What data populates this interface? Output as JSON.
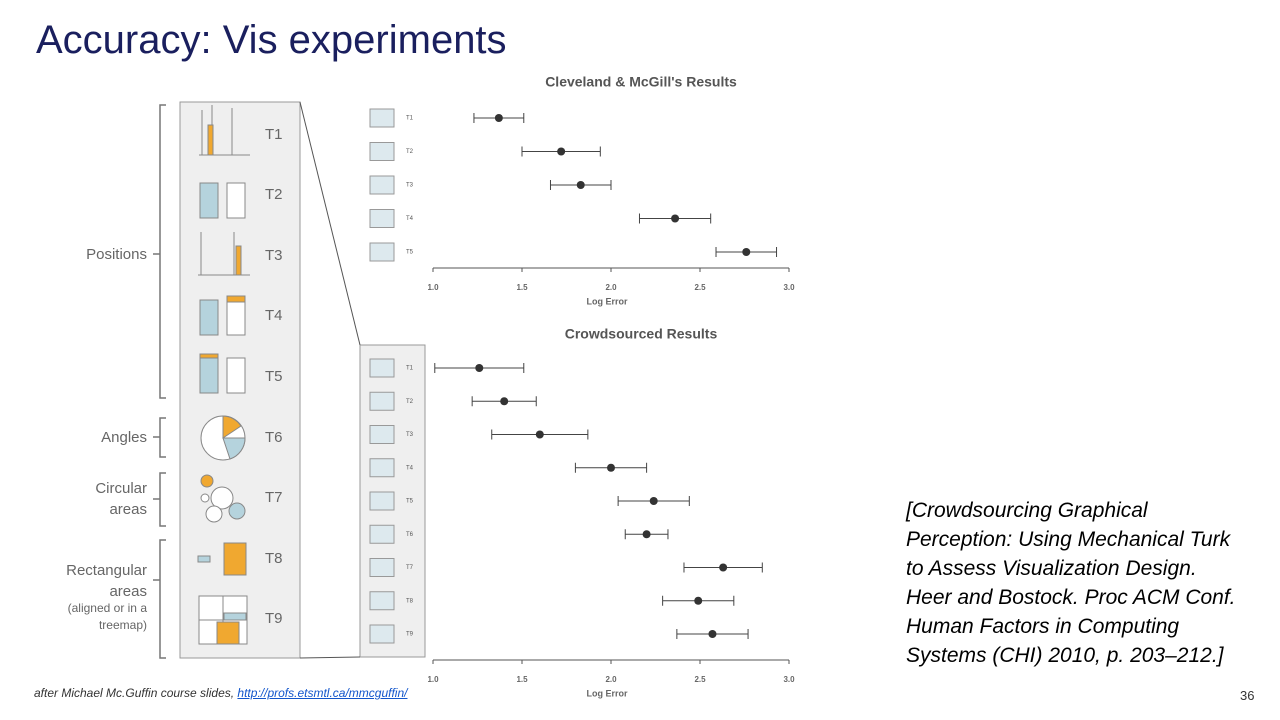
{
  "title": "Accuracy: Vis experiments",
  "footer": {
    "text": "after Michael Mc.Guffin course slides, ",
    "link": "http://profs.etsmtl.ca/mmcguffin/"
  },
  "citation": "[Crowdsourcing Graphical Perception: Using Mechanical Turk to Assess Visualization Design. Heer and Bostock. Proc ACM Conf. Human Factors in Computing Systems (CHI) 2010, p. 203–212.]",
  "page_number": "36",
  "panel": {
    "groups": [
      {
        "label": "Positions"
      },
      {
        "label": "Angles"
      },
      {
        "label": "Circular areas"
      },
      {
        "label": "Rectangular areas",
        "note": "(aligned or in a treemap)"
      }
    ],
    "tasks": [
      "T1",
      "T2",
      "T3",
      "T4",
      "T5",
      "T6",
      "T7",
      "T8",
      "T9"
    ]
  },
  "chart_data": [
    {
      "type": "errorbar",
      "title": "Cleveland & McGill's Results",
      "xlabel": "Log Error",
      "categories": [
        "T1",
        "T2",
        "T3",
        "T4",
        "T5"
      ],
      "values": [
        1.37,
        1.72,
        1.83,
        2.36,
        2.76
      ],
      "errors": [
        0.14,
        0.22,
        0.17,
        0.2,
        0.17
      ],
      "color": "#333333",
      "xlim": [
        1,
        3
      ],
      "xticks": [
        {
          "value": 1,
          "label": "1.0"
        },
        {
          "value": 1.5,
          "label": "1.5"
        },
        {
          "value": 2,
          "label": "2.0"
        },
        {
          "value": 2.5,
          "label": "2.5"
        },
        {
          "value": 3,
          "label": "3.0"
        }
      ]
    },
    {
      "type": "errorbar",
      "title": "Crowdsourced Results",
      "xlabel": "Log Error",
      "categories": [
        "T1",
        "T2",
        "T3",
        "T4",
        "T5",
        "T6",
        "T7",
        "T8",
        "T9"
      ],
      "values": [
        1.26,
        1.4,
        1.6,
        2.0,
        2.24,
        2.2,
        2.63,
        2.49,
        2.57
      ],
      "errors": [
        0.25,
        0.18,
        0.27,
        0.2,
        0.2,
        0.12,
        0.22,
        0.2,
        0.2
      ],
      "color": "#333333",
      "xlim": [
        1,
        3
      ],
      "xticks": [
        {
          "value": 1,
          "label": "1.0"
        },
        {
          "value": 1.5,
          "label": "1.5"
        },
        {
          "value": 2,
          "label": "2.0"
        },
        {
          "value": 2.5,
          "label": "2.5"
        },
        {
          "value": 3,
          "label": "3.0"
        }
      ]
    }
  ]
}
